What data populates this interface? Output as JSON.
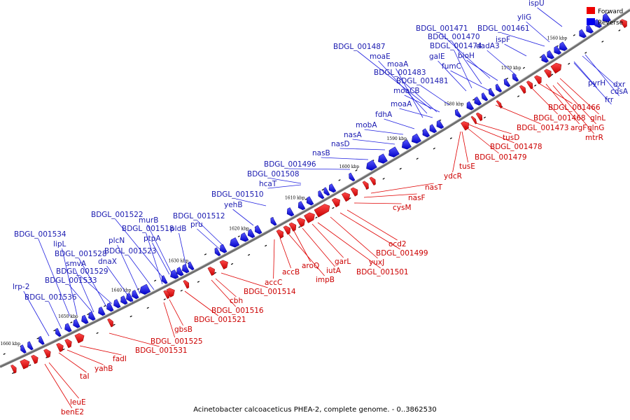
{
  "caption": "Acinetobacter calcoaceticus PHEA-2, complete genome. - 0..3862530",
  "legend": {
    "forward_label": "Forward",
    "reverse_label": "Reverse",
    "forward_color": "#ee0000",
    "reverse_color": "#0000ee"
  },
  "kbp_ticks": [
    "1560 kbp",
    "1570 kbp",
    "1580 kbp",
    "1590 kbp",
    "1600 kbp",
    "1610 kbp",
    "1620 kbp",
    "1630 kbp",
    "1640 kbp",
    "1650 kbp",
    "1660 kbp"
  ],
  "reverse_genes": [
    "ispU",
    "yliG",
    "BDGL_001461",
    "ispF",
    "BDGL_001471",
    "BDGL_001470",
    "BDGL_001474",
    "dadA3",
    "galE",
    "bioH",
    "fumC",
    "BDGL_001487",
    "moaE",
    "moaA",
    "BDGL_001483",
    "BDGL_001481",
    "moaCB",
    "moaA",
    "fdhA",
    "mobA",
    "nasA",
    "nasD",
    "nasB",
    "BDGL_001496",
    "BDGL_001508",
    "hcaT",
    "BDGL_001510",
    "yehB",
    "BDGL_001512",
    "pru",
    "murB",
    "BDGL_001522",
    "BDGL_001518",
    "pldB",
    "plcN",
    "ptpA",
    "BDGL_001523",
    "dnaX",
    "BDGL_001534",
    "lipL",
    "smvA",
    "BDGL_001528",
    "BDGL_001529",
    "BDGL_001533",
    "lrp-2",
    "BDGL_001536",
    "pyrH",
    "dxr",
    "cdsA",
    "frr"
  ],
  "forward_genes": [
    "BDGL_001466",
    "glnL",
    "BDGL_001468",
    "glnG",
    "argF",
    "BDGL_001473",
    "mtrR",
    "tusD",
    "BDGL_001478",
    "BDGL_001479",
    "tusE",
    "ydcR",
    "nasT",
    "nasF",
    "cysM",
    "ocd2",
    "BDGL_001499",
    "yuxJ",
    "BDGL_001501",
    "garL",
    "iutA",
    "aroQ",
    "impB",
    "accB",
    "accC",
    "BDGL_001514",
    "cbh",
    "BDGL_001516",
    "BDGL_001521",
    "gbsB",
    "BDGL_001525",
    "BDGL_001531",
    "fadI",
    "yahB",
    "taI",
    "leuE",
    "benE2"
  ]
}
